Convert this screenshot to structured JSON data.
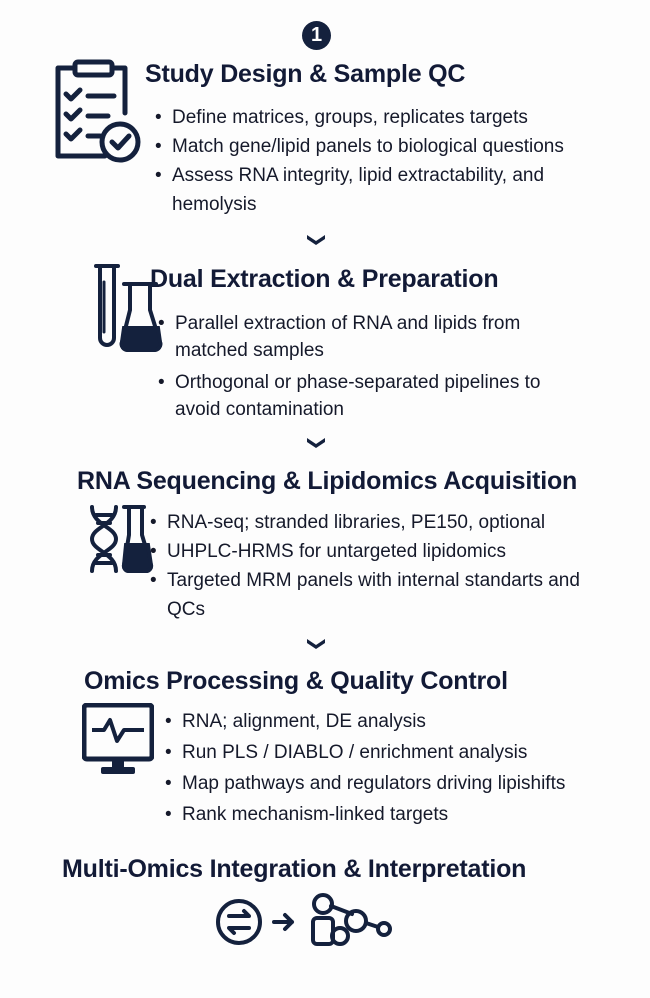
{
  "step_badge": "1",
  "colors": {
    "primary": "#14213d",
    "text": "#15192a"
  },
  "sections": [
    {
      "title": "Study Design & Sample QC",
      "icon": "clipboard-check-icon",
      "bullets": [
        "Define matrices, groups, replicates targets",
        "Match gene/lipid panels to biological questions",
        "Assess RNA integrity, lipid extractability, and hemolysis"
      ]
    },
    {
      "title": "Dual Extraction & Preparation",
      "icon": "test-tubes-icon",
      "bullets": [
        "Parallel extraction of RNA and lipids from matched samples",
        "Orthogonal or phase-separated pipelines to avoid contamination"
      ]
    },
    {
      "title": "RNA Sequencing & Lipidomics Acquisition",
      "icon": "dna-flask-icon",
      "bullets": [
        "RNA-seq; stranded libraries, PE150, optional",
        "UHPLC-HRMS for untargeted lipidomics",
        "Targeted MRM panels with internal standarts and QCs"
      ]
    },
    {
      "title": "Omics Processing & Quality Control",
      "icon": "monitor-pulse-icon",
      "bullets": [
        "RNA; alignment, DE analysis",
        "Run PLS / DIABLO / enrichment analysis",
        "Map pathways and regulators driving lipishifts",
        "Rank mechanism-linked targets"
      ]
    },
    {
      "title": "Multi-Omics Integration & Interpretation",
      "icon": "exchange-network-icon",
      "bullets": []
    }
  ]
}
